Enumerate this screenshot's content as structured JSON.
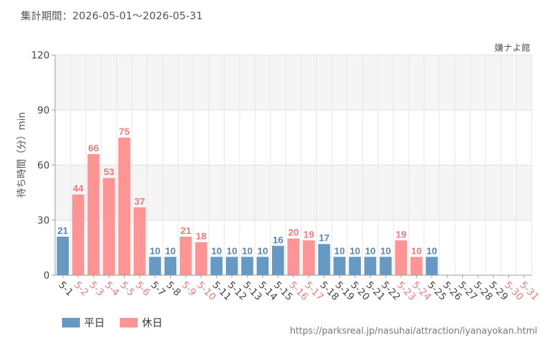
{
  "header": {
    "period_text": "集計期間：2026-05-01～2026-05-31",
    "facility_name": "嫌ナよ館"
  },
  "footer": {
    "source_url": "https://parksreal.jp/nasuhai/attraction/iyanayokan.html"
  },
  "colors": {
    "weekday": "#6699c4",
    "holiday": "#ff9494",
    "weekday_text": "#5a86b5",
    "holiday_text": "#f07a7a"
  },
  "chart_data": {
    "type": "bar",
    "ylabel": "待ち時間（分）min",
    "ylim": [
      0,
      120
    ],
    "yticks": [
      0,
      30,
      60,
      90,
      120
    ],
    "grid": true,
    "legend_placement": "bottom-left",
    "legend": [
      {
        "name": "平日",
        "key": "weekday"
      },
      {
        "name": "休日",
        "key": "holiday"
      }
    ],
    "categories": [
      "5-1",
      "5-2",
      "5-3",
      "5-4",
      "5-5",
      "5-6",
      "5-7",
      "5-8",
      "5-9",
      "5-10",
      "5-11",
      "5-12",
      "5-13",
      "5-14",
      "5-15",
      "5-16",
      "5-17",
      "5-18",
      "5-19",
      "5-20",
      "5-21",
      "5-22",
      "5-23",
      "5-24",
      "5-25",
      "5-26",
      "5-27",
      "5-28",
      "5-29",
      "5-30",
      "5-31"
    ],
    "values": [
      21,
      44,
      66,
      53,
      75,
      37,
      10,
      10,
      21,
      18,
      10,
      10,
      10,
      10,
      16,
      20,
      19,
      17,
      10,
      10,
      10,
      10,
      19,
      10,
      10,
      null,
      null,
      null,
      null,
      null,
      null
    ],
    "day_types": [
      "weekday",
      "holiday",
      "holiday",
      "holiday",
      "holiday",
      "holiday",
      "weekday",
      "weekday",
      "holiday",
      "holiday",
      "weekday",
      "weekday",
      "weekday",
      "weekday",
      "weekday",
      "holiday",
      "holiday",
      "weekday",
      "weekday",
      "weekday",
      "weekday",
      "weekday",
      "holiday",
      "holiday",
      "weekday",
      "weekday",
      "weekday",
      "weekday",
      "weekday",
      "holiday",
      "holiday"
    ]
  }
}
